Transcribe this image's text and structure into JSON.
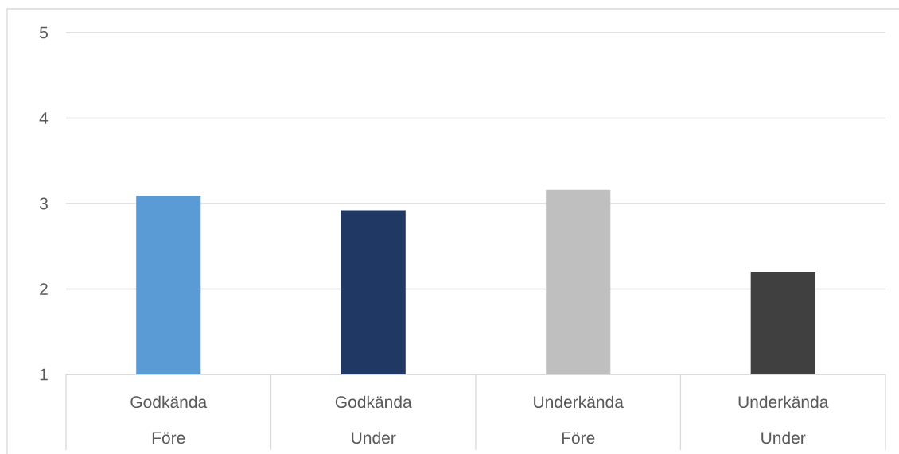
{
  "chart_data": {
    "type": "bar",
    "categories": [
      "Godkända Före",
      "Godkända Under",
      "Underkända Före",
      "Underkända Under"
    ],
    "values": [
      3.09,
      2.92,
      3.16,
      2.2
    ],
    "colors": [
      "#5b9bd5",
      "#203864",
      "#bfbfbf",
      "#404040"
    ],
    "ylim": [
      1,
      5
    ],
    "yticks": [
      1,
      2,
      3,
      4,
      5
    ],
    "grid": "y"
  }
}
